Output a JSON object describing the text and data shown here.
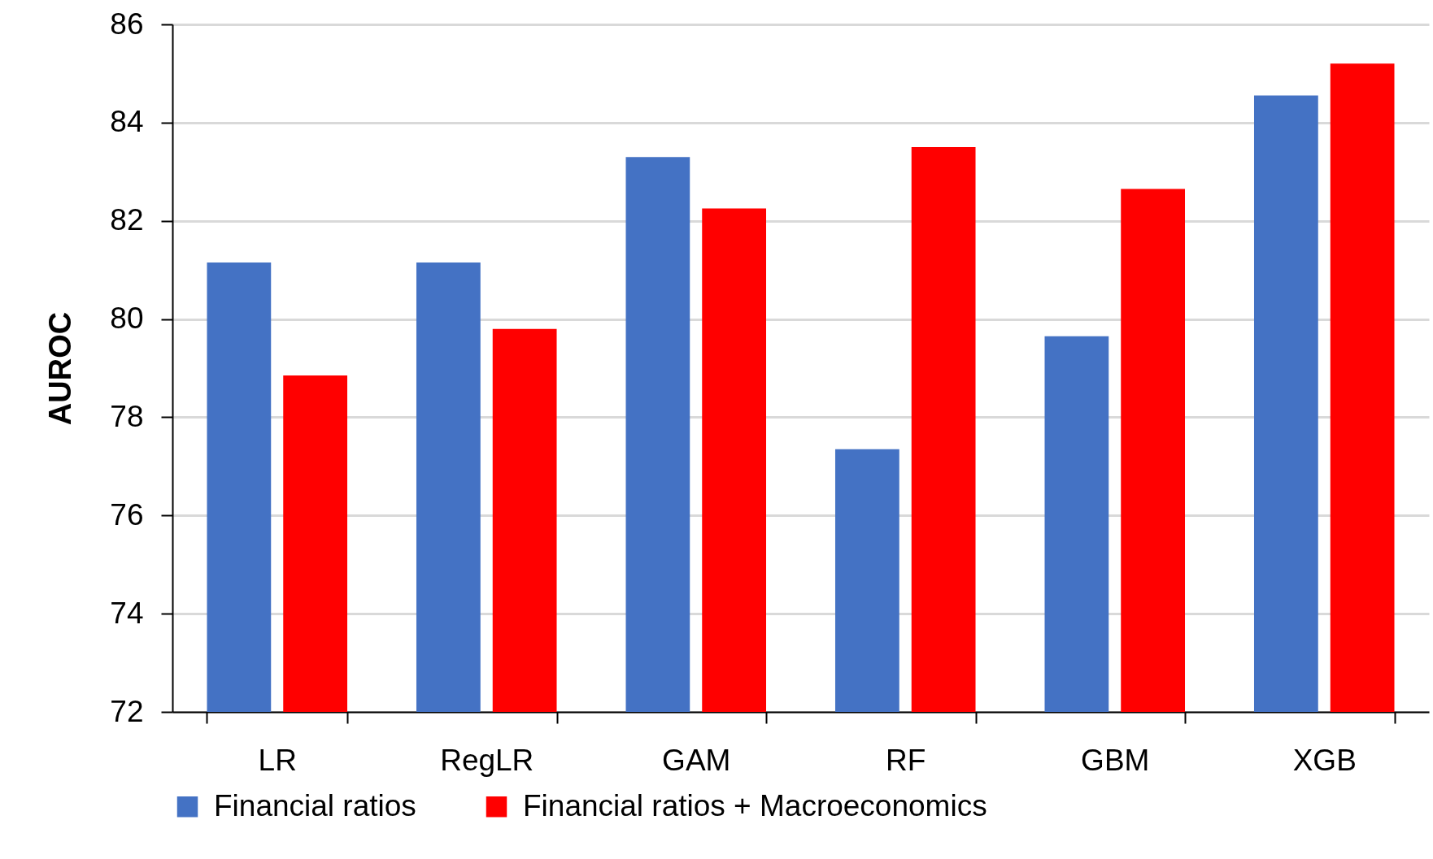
{
  "chart_data": {
    "type": "bar",
    "ylabel": "AUROC",
    "categories": [
      "LR",
      "RegLR",
      "GAM",
      "RF",
      "GBM",
      "XGB"
    ],
    "series": [
      {
        "name": "Financial ratios",
        "color": "#4472c4",
        "values": [
          81.15,
          81.15,
          83.3,
          77.35,
          79.65,
          84.55
        ]
      },
      {
        "name": "Financial ratios + Macroeconomics",
        "color": "#ff0000",
        "values": [
          78.85,
          79.8,
          82.25,
          83.5,
          82.65,
          85.2
        ]
      }
    ],
    "ylim": [
      72,
      86
    ],
    "yticks": [
      72,
      74,
      76,
      78,
      80,
      82,
      84,
      86
    ],
    "grid": "y",
    "legend": "bottom"
  }
}
